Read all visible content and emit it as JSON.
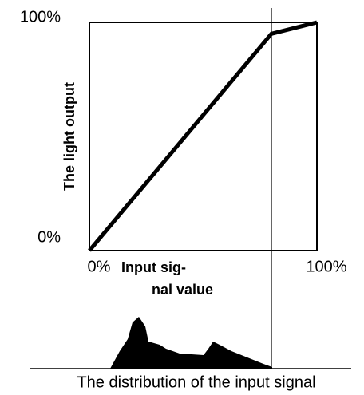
{
  "chart_data": {
    "type": "line",
    "ylabel": "The light output",
    "xlabel": [
      "Input sig-",
      "nal value"
    ],
    "caption": "The distribution of the input signal",
    "x": [
      0,
      80,
      100
    ],
    "values": [
      0,
      95,
      100
    ],
    "color": "#000000",
    "xlim": [
      0,
      100
    ],
    "ylim": [
      0,
      100
    ],
    "xticks": [
      {
        "value": 0,
        "label": "0%"
      },
      {
        "value": 100,
        "label": "100%"
      }
    ],
    "yticks": [
      {
        "value": 0,
        "label": "0%"
      },
      {
        "value": 100,
        "label": "100%"
      }
    ]
  }
}
